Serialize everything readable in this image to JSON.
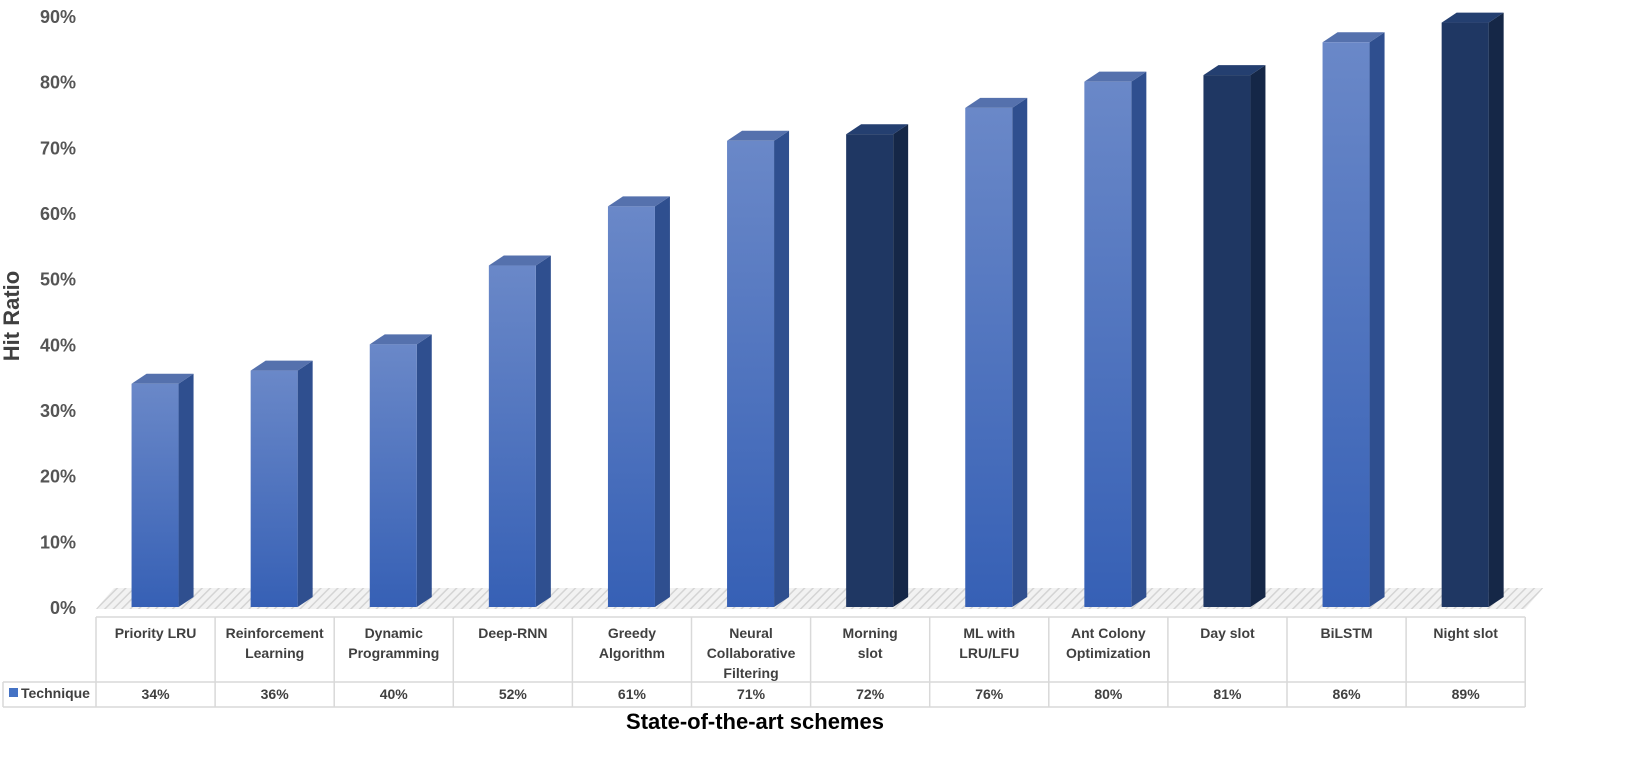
{
  "chart_data": {
    "type": "bar",
    "title": "",
    "xlabel": "State-of-the-art schemes",
    "ylabel": "Hit Ratio",
    "ylim": [
      0,
      90
    ],
    "y_tick_step": 10,
    "y_tick_suffix": "%",
    "grid": false,
    "legend_position": "table-row-left",
    "categories": [
      "Priority LRU",
      "Reinforcement Learning",
      "Dynamic Programming",
      "Deep-RNN",
      "Greedy Algorithm",
      "Neural Collaborative Filtering",
      "Morning slot",
      "ML with LRU/LFU",
      "Ant Colony Optimization",
      "Day slot",
      "BiLSTM",
      "Night slot"
    ],
    "category_lines": [
      [
        "Priority LRU"
      ],
      [
        "Reinforcement",
        "Learning"
      ],
      [
        "Dynamic",
        "Programming"
      ],
      [
        "Deep-RNN"
      ],
      [
        "Greedy",
        "Algorithm"
      ],
      [
        "Neural",
        "Collaborative",
        "Filtering"
      ],
      [
        "Morning",
        "slot"
      ],
      [
        "ML with",
        "LRU/LFU"
      ],
      [
        "Ant Colony",
        "Optimization"
      ],
      [
        "Day slot"
      ],
      [
        "BiLSTM"
      ],
      [
        "Night slot"
      ]
    ],
    "series": [
      {
        "name": "Technique",
        "values": [
          34,
          36,
          40,
          52,
          61,
          71,
          72,
          76,
          80,
          81,
          86,
          89
        ],
        "labels": [
          "34%",
          "36%",
          "40%",
          "52%",
          "61%",
          "71%",
          "72%",
          "76%",
          "80%",
          "81%",
          "86%",
          "89%"
        ]
      }
    ],
    "highlighted": [
      "Morning slot",
      "Day slot",
      "Night slot"
    ],
    "colors": {
      "bar_light_top": "#6a88c8",
      "bar_light_bottom": "#3660b5",
      "bar_light_side": "#2f4f8f",
      "bar_light_cap": "#5571ad",
      "bar_dark": "#1f3763",
      "bar_dark_side": "#152747",
      "bar_dark_cap": "#243f70",
      "legend_swatch": "#4472c4",
      "table_border": "#d9d9d9"
    }
  }
}
